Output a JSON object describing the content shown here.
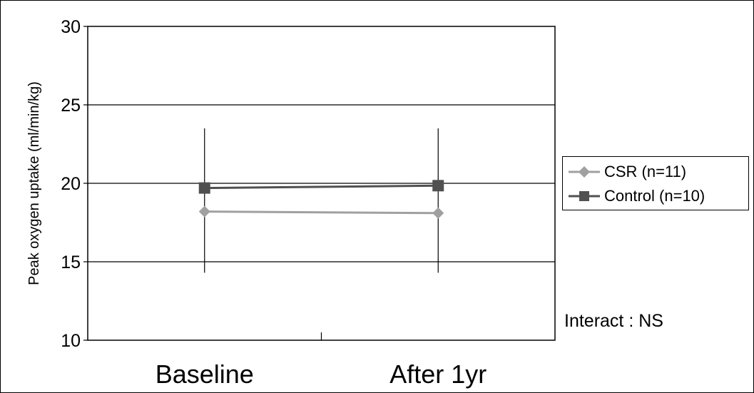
{
  "chart_data": {
    "type": "line",
    "title": "",
    "xlabel": "",
    "ylabel": "Peak oxygen uptake (ml/min/kg)",
    "categories": [
      "Baseline",
      "After 1yr"
    ],
    "ylim": [
      10,
      30
    ],
    "yticks": [
      10,
      15,
      20,
      25,
      30
    ],
    "grid": true,
    "legend_position": "right",
    "annotation": "Interact : NS",
    "series": [
      {
        "name": "CSR (n=11)",
        "values": [
          18.2,
          18.1
        ],
        "color": "#a0a0a0",
        "marker": "diamond"
      },
      {
        "name": "Control (n=10)",
        "values": [
          19.7,
          19.85
        ],
        "color": "#505050",
        "marker": "square"
      }
    ],
    "error_bars": [
      {
        "category": "Baseline",
        "low": 14.3,
        "high": 23.5
      },
      {
        "category": "After 1yr",
        "low": 14.3,
        "high": 23.5
      }
    ]
  }
}
